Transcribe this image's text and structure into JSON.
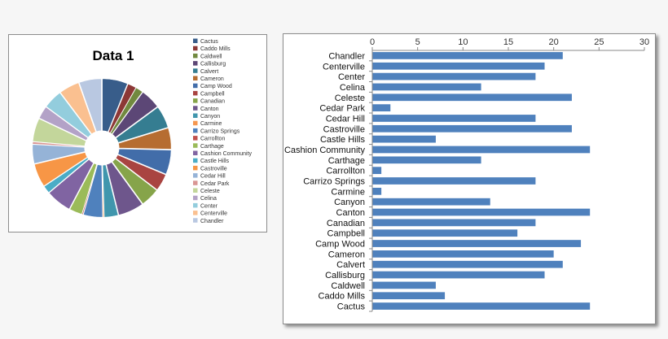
{
  "pie_chart": {
    "title": "Data 1",
    "legend": [
      "Cactus",
      "Caddo Mills",
      "Caldwell",
      "Callisburg",
      "Calvert",
      "Cameron",
      "Camp Wood",
      "Campbell",
      "Canadian",
      "Canton",
      "Canyon",
      "Carmine",
      "Carrizo Springs",
      "Carrollton",
      "Carthage",
      "Cashion Community",
      "Castle Hills",
      "Castroville",
      "Cedar Hill",
      "Cedar Park",
      "Celeste",
      "Celina",
      "Center",
      "Centerville",
      "Chandler"
    ]
  },
  "chart_data": [
    {
      "type": "pie",
      "title": "Data 1",
      "categories": [
        "Cactus",
        "Caddo Mills",
        "Caldwell",
        "Callisburg",
        "Calvert",
        "Cameron",
        "Camp Wood",
        "Campbell",
        "Canadian",
        "Canton",
        "Canyon",
        "Carmine",
        "Carrizo Springs",
        "Carrollton",
        "Carthage",
        "Cashion Community",
        "Castle Hills",
        "Castroville",
        "Cedar Hill",
        "Cedar Park",
        "Celeste",
        "Celina",
        "Center",
        "Centerville",
        "Chandler"
      ],
      "values": [
        24,
        8,
        7,
        19,
        21,
        20,
        23,
        16,
        18,
        24,
        13,
        1,
        18,
        1,
        12,
        24,
        7,
        22,
        18,
        2,
        22,
        12,
        18,
        19,
        21
      ],
      "colors": [
        "#385d8a",
        "#8c3836",
        "#71893f",
        "#5c4776",
        "#357d91",
        "#b66d31",
        "#426da9",
        "#a94441",
        "#86a44a",
        "#6e568c",
        "#4096ad",
        "#f5974f",
        "#4f81bd",
        "#c0504d",
        "#9bbb59",
        "#8064a2",
        "#4bacc6",
        "#f79646",
        "#95b3d7",
        "#d99694",
        "#c3d69b",
        "#b3a2c7",
        "#93cddd",
        "#fac090",
        "#b9c8e1"
      ],
      "legend_position": "right"
    },
    {
      "type": "bar",
      "orientation": "horizontal",
      "categories": [
        "Chandler",
        "Centerville",
        "Center",
        "Celina",
        "Celeste",
        "Cedar Park",
        "Cedar Hill",
        "Castroville",
        "Castle Hills",
        "Cashion Community",
        "Carthage",
        "Carrollton",
        "Carrizo Springs",
        "Carmine",
        "Canyon",
        "Canton",
        "Canadian",
        "Campbell",
        "Camp Wood",
        "Cameron",
        "Calvert",
        "Callisburg",
        "Caldwell",
        "Caddo Mills",
        "Cactus"
      ],
      "values": [
        21,
        19,
        18,
        12,
        22,
        2,
        18,
        22,
        7,
        24,
        12,
        1,
        18,
        1,
        13,
        24,
        18,
        16,
        23,
        20,
        21,
        19,
        7,
        8,
        24
      ],
      "xlim": [
        0,
        30
      ],
      "xticks": [
        0,
        5,
        10,
        15,
        20,
        25,
        30
      ],
      "color": "#4f81bd",
      "axis_position": "top"
    }
  ]
}
